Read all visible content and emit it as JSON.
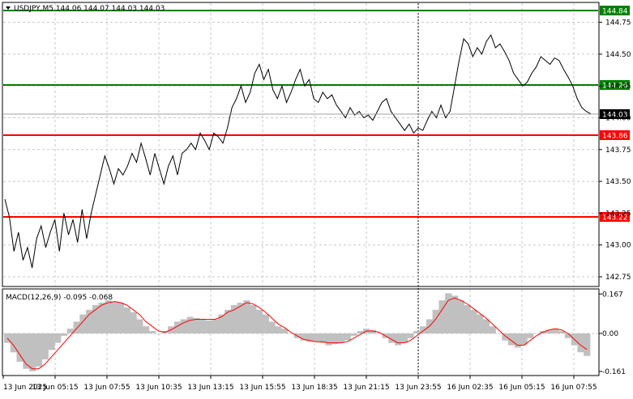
{
  "header": {
    "symbol_line": "USDJPY,M5  144.06 144.07 144.03 144.03",
    "macd_line": "MACD(12,26,9) -0.095 -0.068"
  },
  "colors": {
    "price": "#000000",
    "support": "#ff0000",
    "resistance": "#008000",
    "histogram": "#c0c0c0",
    "signal": "#ff0000",
    "grid": "#c8c8c8",
    "current_tag": "#000000"
  },
  "chart_data": [
    {
      "type": "line",
      "title": "USDJPY,M5",
      "ylim": [
        142.68,
        144.9
      ],
      "y_ticks": [
        "144.75",
        "144.50",
        "144.25",
        "144.00",
        "143.75",
        "143.50",
        "143.25",
        "143.00",
        "142.75"
      ],
      "y_tick_values": [
        144.75,
        144.5,
        144.25,
        144.0,
        143.75,
        143.5,
        143.25,
        143.0,
        142.75
      ],
      "x_labels": [
        "13 Jun 2025",
        "13 Jun 05:15",
        "13 Jun 07:55",
        "13 Jun 10:35",
        "13 Jun 13:15",
        "13 Jun 15:55",
        "13 Jun 18:35",
        "13 Jun 21:15",
        "13 Jun 23:55",
        "16 Jun 02:35",
        "16 Jun 05:15",
        "16 Jun 07:55"
      ],
      "levels": [
        {
          "label": "144.84",
          "value": 144.84,
          "kind": "resistance"
        },
        {
          "label": "144.26",
          "value": 144.26,
          "kind": "resistance"
        },
        {
          "label": "143.86",
          "value": 143.86,
          "kind": "support"
        },
        {
          "label": "143.22",
          "value": 143.22,
          "kind": "support"
        }
      ],
      "current": {
        "label": "144.03",
        "value": 144.03
      },
      "series": [
        {
          "values": [
            143.36,
            143.22,
            142.95,
            143.1,
            142.88,
            142.98,
            142.82,
            143.05,
            143.15,
            142.98,
            143.1,
            143.2,
            142.95,
            143.25,
            143.08,
            143.2,
            143.02,
            143.28,
            143.05,
            143.25,
            143.4,
            143.55,
            143.7,
            143.6,
            143.48,
            143.6,
            143.55,
            143.62,
            143.72,
            143.65,
            143.8,
            143.68,
            143.55,
            143.72,
            143.6,
            143.48,
            143.62,
            143.7,
            143.55,
            143.72,
            143.75,
            143.8,
            143.75,
            143.88,
            143.82,
            143.75,
            143.88,
            143.85,
            143.8,
            143.92,
            144.08,
            144.15,
            144.25,
            144.12,
            144.2,
            144.35,
            144.42,
            144.3,
            144.38,
            144.22,
            144.15,
            144.25,
            144.12,
            144.2,
            144.3,
            144.38,
            144.25,
            144.3,
            144.15,
            144.12,
            144.2,
            144.15,
            144.18,
            144.1,
            144.05,
            144.0,
            144.08,
            144.02,
            144.05,
            144.0,
            144.02,
            143.98,
            144.05,
            144.12,
            144.15,
            144.05,
            144.0,
            143.95,
            143.9,
            143.95,
            143.88,
            143.92,
            143.9,
            143.98,
            144.05,
            144.0,
            144.1,
            144.0,
            144.05,
            144.25,
            144.45,
            144.62,
            144.58,
            144.48,
            144.55,
            144.5,
            144.6,
            144.65,
            144.55,
            144.58,
            144.52,
            144.45,
            144.35,
            144.3,
            144.25,
            144.28,
            144.35,
            144.4,
            144.48,
            144.45,
            144.42,
            144.47,
            144.45,
            144.38,
            144.32,
            144.25,
            144.15,
            144.08,
            144.05,
            144.03
          ]
        }
      ]
    },
    {
      "type": "bar",
      "title": "MACD(12,26,9)",
      "ylim": [
        -0.175,
        0.185
      ],
      "y_ticks": [
        "0.167",
        "0.00",
        "-0.161"
      ],
      "y_tick_values": [
        0.167,
        0.0,
        -0.161
      ],
      "series": [
        {
          "name": "MACD",
          "values": [
            -0.04,
            -0.08,
            -0.12,
            -0.15,
            -0.16,
            -0.14,
            -0.11,
            -0.07,
            -0.04,
            -0.01,
            0.02,
            0.05,
            0.08,
            0.1,
            0.12,
            0.13,
            0.14,
            0.135,
            0.13,
            0.11,
            0.09,
            0.06,
            0.03,
            0.01,
            0.0,
            0.01,
            0.03,
            0.05,
            0.06,
            0.07,
            0.065,
            0.06,
            0.055,
            0.06,
            0.08,
            0.1,
            0.12,
            0.13,
            0.14,
            0.12,
            0.1,
            0.08,
            0.05,
            0.03,
            0.02,
            0.0,
            -0.02,
            -0.03,
            -0.035,
            -0.035,
            -0.04,
            -0.05,
            -0.045,
            -0.04,
            -0.03,
            -0.01,
            0.01,
            0.02,
            0.015,
            0.0,
            -0.02,
            -0.04,
            -0.05,
            -0.04,
            -0.02,
            0.01,
            0.03,
            0.06,
            0.1,
            0.14,
            0.17,
            0.16,
            0.14,
            0.12,
            0.1,
            0.08,
            0.06,
            0.03,
            0.0,
            -0.03,
            -0.05,
            -0.06,
            -0.05,
            -0.02,
            0.0,
            0.01,
            0.015,
            0.02,
            0.01,
            -0.02,
            -0.05,
            -0.08,
            -0.095
          ]
        },
        {
          "name": "Signal",
          "values": [
            -0.02,
            -0.05,
            -0.09,
            -0.13,
            -0.15,
            -0.15,
            -0.13,
            -0.1,
            -0.07,
            -0.04,
            -0.01,
            0.02,
            0.05,
            0.08,
            0.1,
            0.12,
            0.13,
            0.135,
            0.13,
            0.12,
            0.1,
            0.08,
            0.05,
            0.03,
            0.01,
            0.005,
            0.015,
            0.03,
            0.045,
            0.055,
            0.06,
            0.06,
            0.06,
            0.06,
            0.07,
            0.09,
            0.1,
            0.115,
            0.13,
            0.125,
            0.11,
            0.09,
            0.065,
            0.04,
            0.025,
            0.005,
            -0.01,
            -0.025,
            -0.03,
            -0.035,
            -0.035,
            -0.04,
            -0.04,
            -0.04,
            -0.035,
            -0.02,
            -0.005,
            0.01,
            0.01,
            0.005,
            -0.01,
            -0.025,
            -0.04,
            -0.04,
            -0.03,
            -0.01,
            0.01,
            0.03,
            0.06,
            0.1,
            0.14,
            0.15,
            0.14,
            0.125,
            0.105,
            0.085,
            0.065,
            0.04,
            0.015,
            -0.01,
            -0.03,
            -0.05,
            -0.05,
            -0.03,
            -0.01,
            0.005,
            0.015,
            0.02,
            0.015,
            0.0,
            -0.025,
            -0.05,
            -0.068
          ]
        }
      ]
    }
  ]
}
